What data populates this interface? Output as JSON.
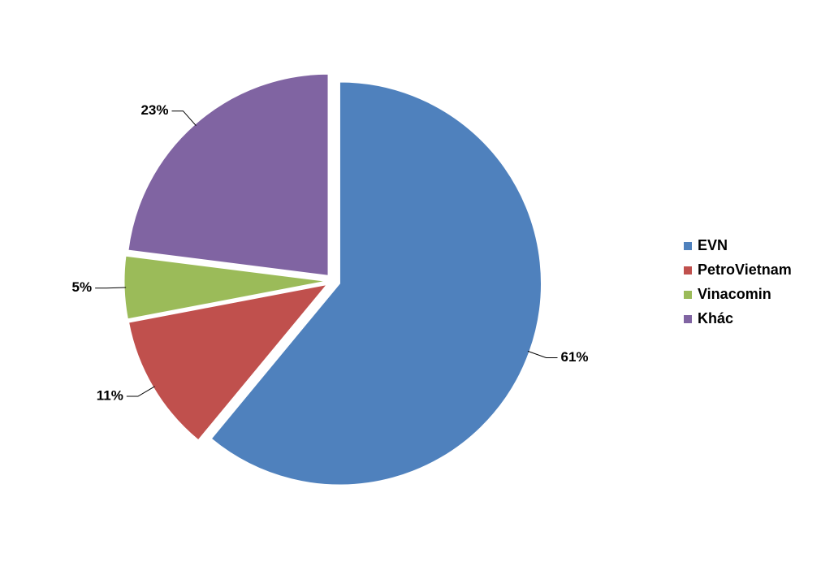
{
  "chart_data": {
    "type": "pie",
    "categories": [
      "EVN",
      "PetroVietnam",
      "Vinacomin",
      "Khác"
    ],
    "values": [
      61,
      11,
      5,
      23
    ],
    "value_labels": [
      "61%",
      "11%",
      "5%",
      "23%"
    ],
    "colors": [
      "#4f81bd",
      "#c0504d",
      "#9bbb59",
      "#8064a2"
    ],
    "legend": "right"
  }
}
